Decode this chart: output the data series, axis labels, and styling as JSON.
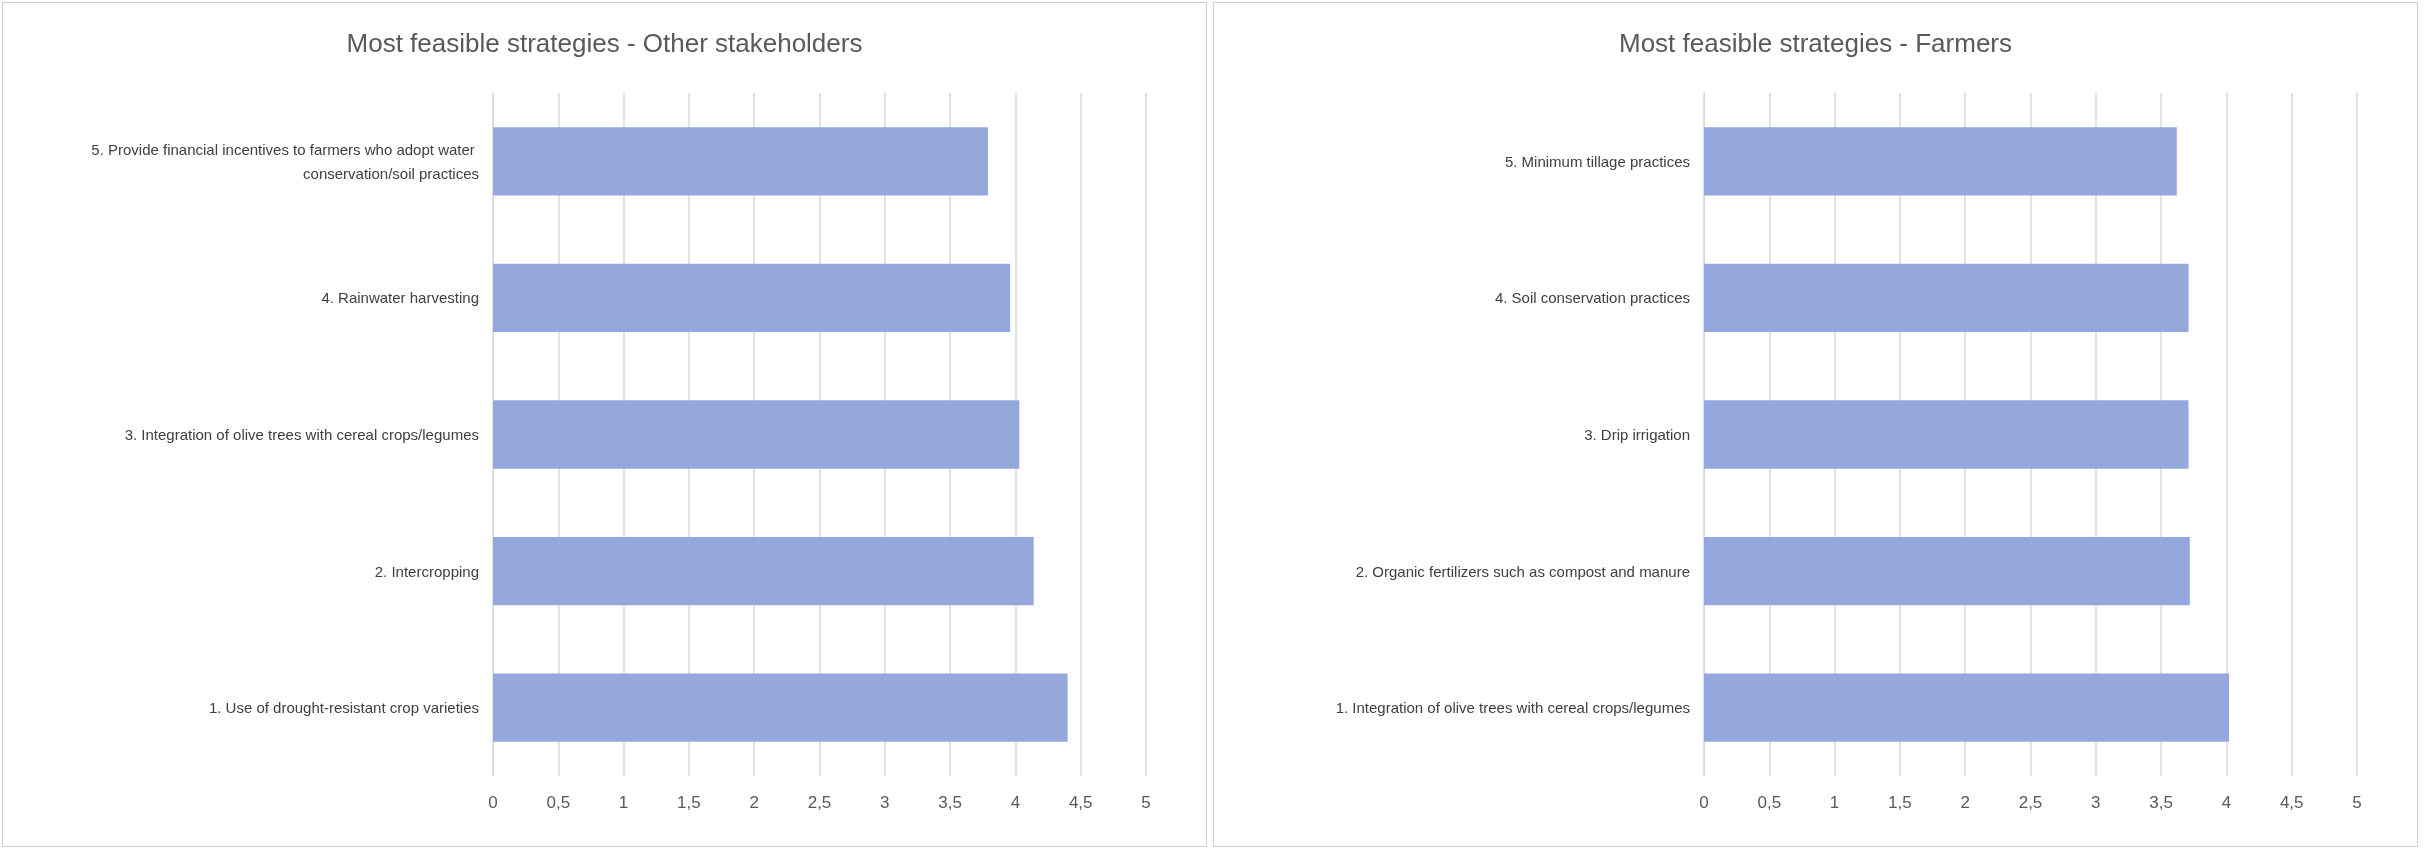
{
  "chart_data": [
    {
      "type": "bar",
      "orientation": "horizontal",
      "title": "Most feasible strategies - Other stakeholders",
      "categories": [
        "5. Provide financial incentives to farmers who adopt water conservation/soil practices",
        "4. Rainwater harvesting",
        "3. Integration of olive trees with cereal crops/legumes",
        "2. Intercropping",
        "1. Use of drought-resistant crop varieties"
      ],
      "values": [
        3.79,
        3.96,
        4.03,
        4.14,
        4.4
      ],
      "color": "#95a8de",
      "xlim": [
        0,
        5
      ],
      "xticks": [
        0,
        {
          "value": 0.5,
          "label": "0,5"
        },
        1,
        {
          "value": 1.5,
          "label": "1,5"
        },
        2,
        {
          "value": 2.5,
          "label": "2,5"
        },
        3,
        {
          "value": 3.5,
          "label": "3,5"
        },
        4,
        {
          "value": 4.5,
          "label": "4,5"
        },
        5
      ],
      "grid": "x"
    },
    {
      "type": "bar",
      "orientation": "horizontal",
      "title": "Most feasible strategies - Farmers",
      "categories": [
        "5. Minimum tillage practices",
        "4. Soil conservation practices",
        "3. Drip irrigation",
        "2. Organic fertilizers such as compost and manure",
        "1. Integration of olive trees with cereal crops/legumes"
      ],
      "values": [
        3.62,
        3.71,
        3.71,
        3.72,
        4.02
      ],
      "color": "#95a8de",
      "xlim": [
        0,
        5
      ],
      "xticks": [
        0,
        {
          "value": 0.5,
          "label": "0,5"
        },
        1,
        {
          "value": 1.5,
          "label": "1,5"
        },
        2,
        {
          "value": 2.5,
          "label": "2,5"
        },
        3,
        {
          "value": 3.5,
          "label": "3,5"
        },
        4,
        {
          "value": 4.5,
          "label": "4,5"
        },
        5
      ],
      "grid": "x"
    }
  ]
}
